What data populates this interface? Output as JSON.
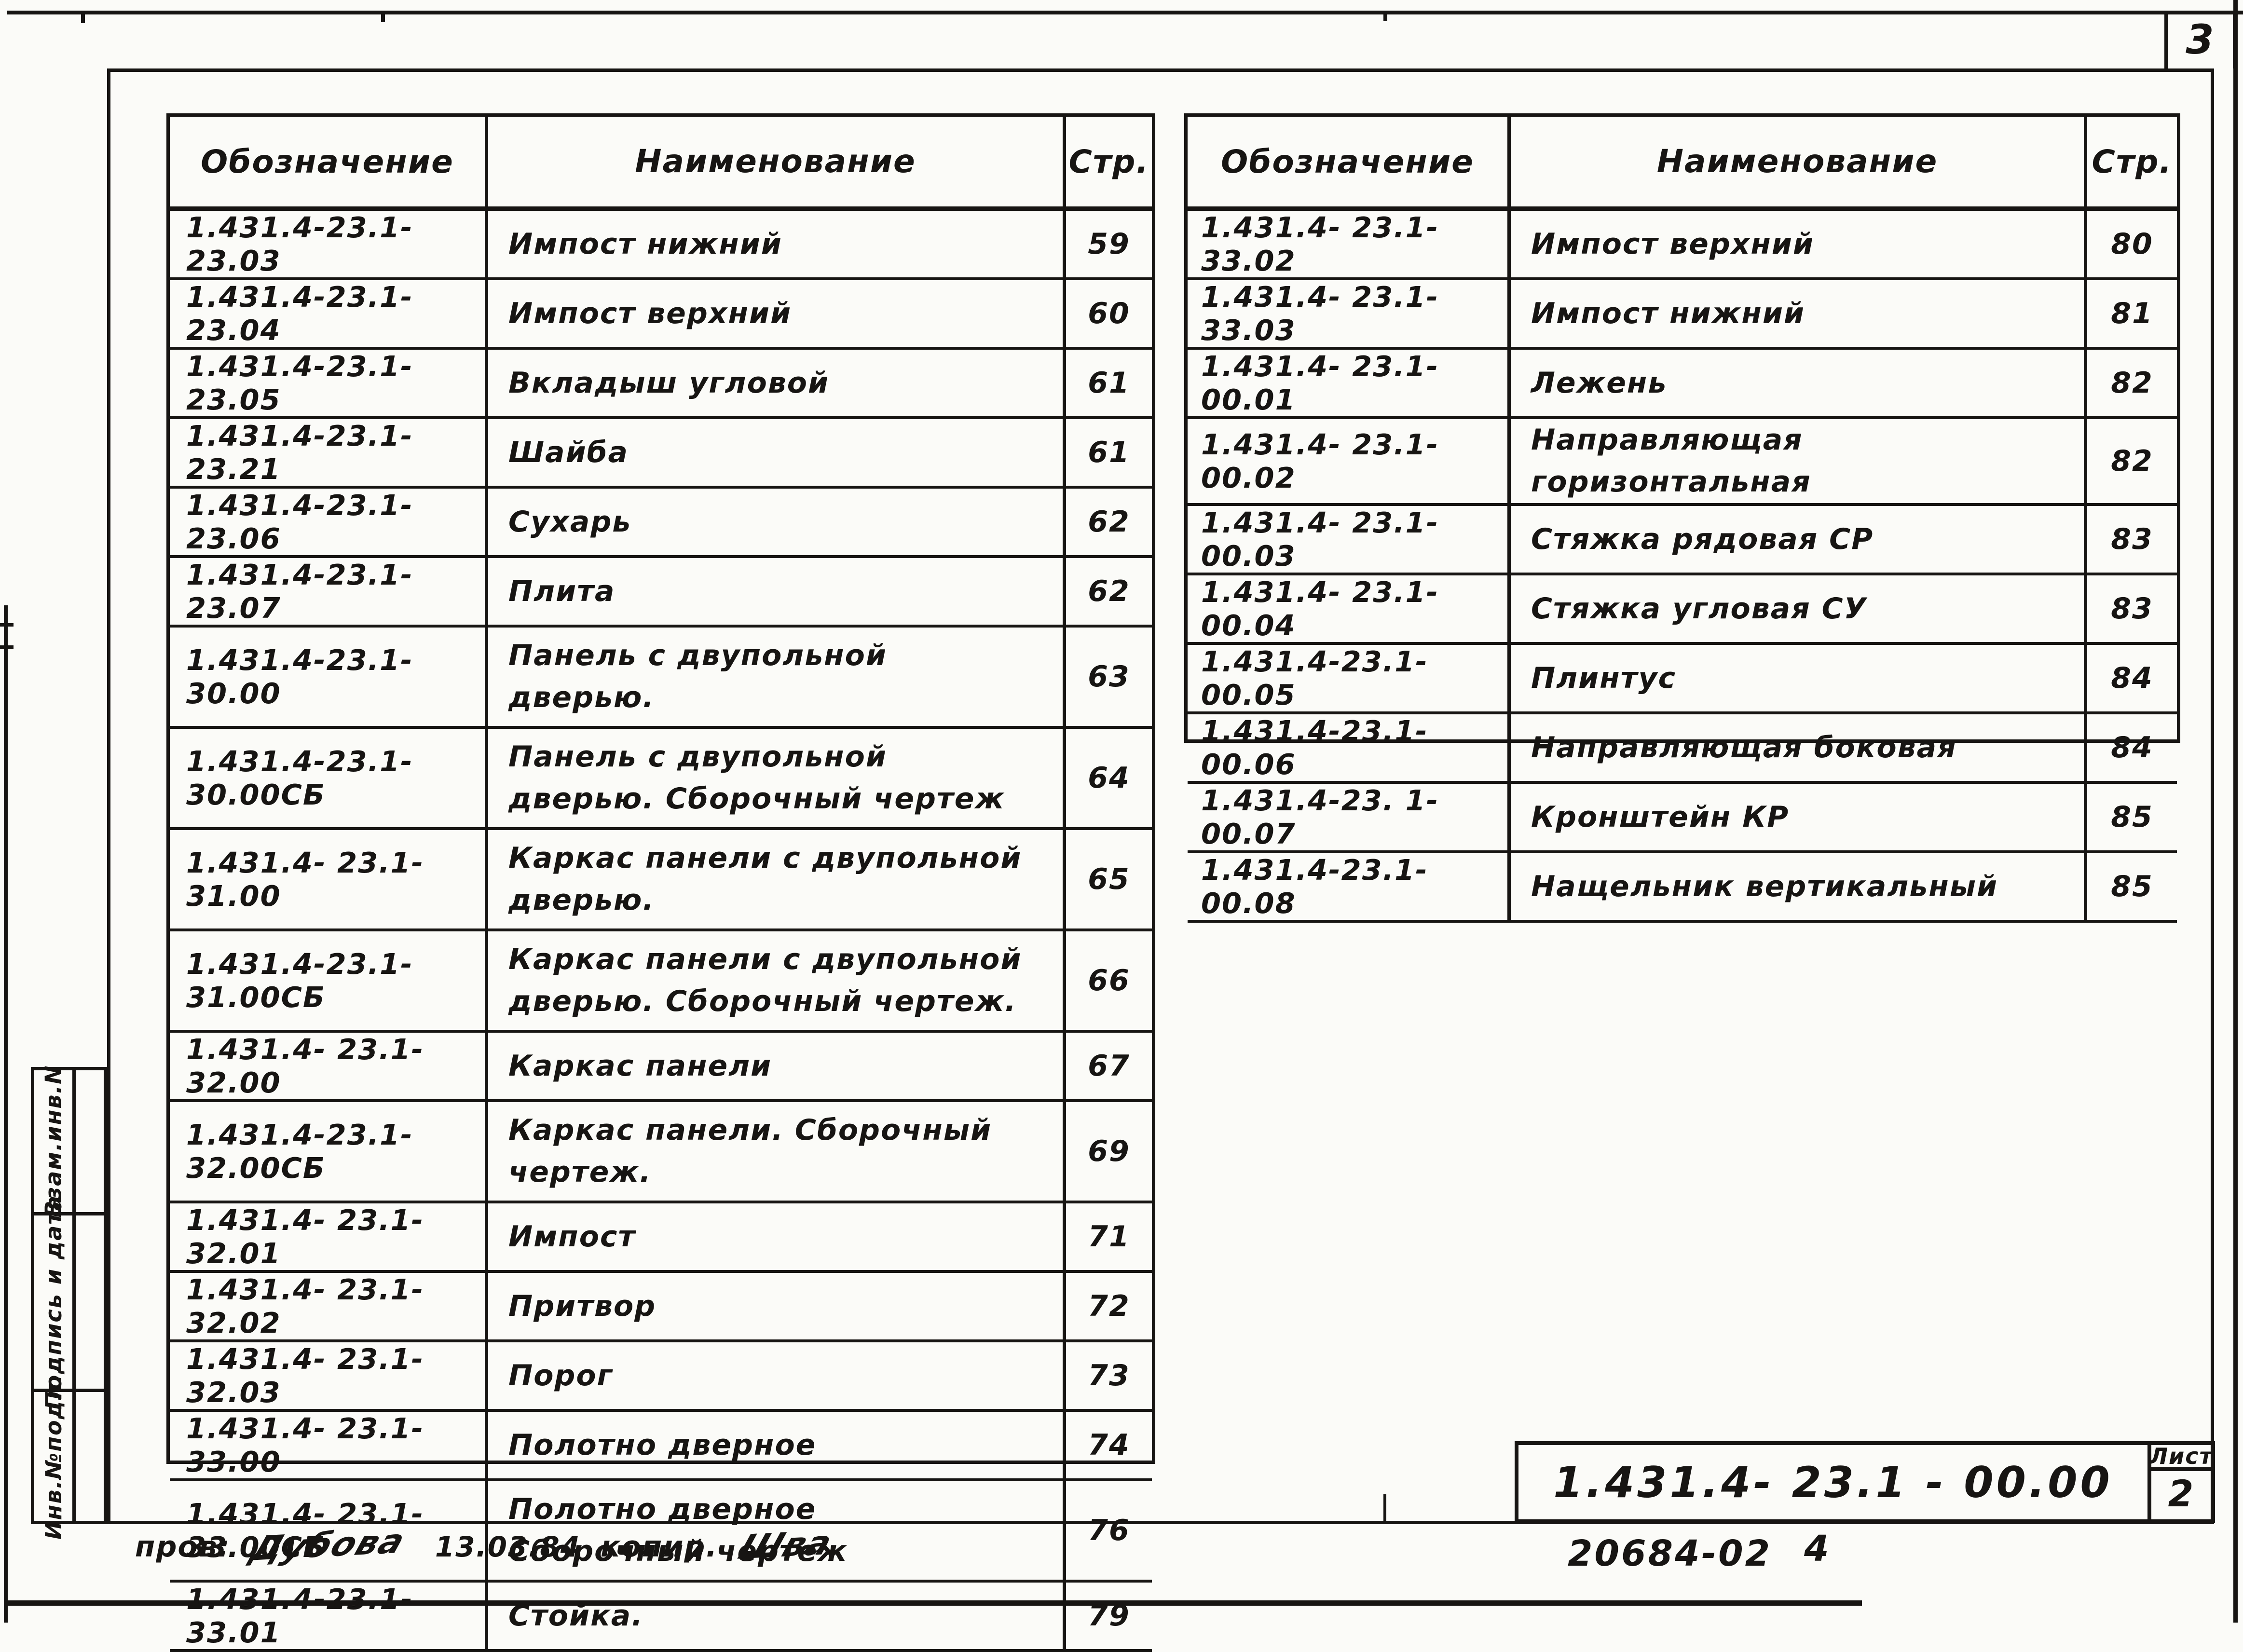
{
  "sheet": {
    "corner_page_number": "3",
    "stamp": {
      "doc_number": "1.431.4- 23.1 - 00.00",
      "sheet_label": "Лист",
      "sheet_value": "2"
    },
    "footer": {
      "code": "20684-02",
      "extra": "4",
      "note_prefix": "пров:",
      "note_sig1": "Дубова",
      "note_date": "13.03.84",
      "note_copier": "копир.",
      "note_sig2": "Шва"
    },
    "side_stamp": {
      "cells": [
        "Взам.инв.N",
        "Подпись и дата",
        "Инв.№подл."
      ]
    }
  },
  "tables": [
    {
      "headers": [
        "Обозначение",
        "Наименование",
        "Стр."
      ],
      "rows": [
        {
          "code": "1.431.4-23.1-23.03",
          "name": "Импост нижний",
          "page": "59",
          "tall": false
        },
        {
          "code": "1.431.4-23.1-23.04",
          "name": "Импост верхний",
          "page": "60",
          "tall": false
        },
        {
          "code": "1.431.4-23.1-23.05",
          "name": "Вкладыш угловой",
          "page": "61",
          "tall": false
        },
        {
          "code": "1.431.4-23.1- 23.21",
          "name": "Шайба",
          "page": "61",
          "tall": false
        },
        {
          "code": "1.431.4-23.1-23.06",
          "name": "Сухарь",
          "page": "62",
          "tall": false
        },
        {
          "code": "1.431.4-23.1-23.07",
          "name": "Плита",
          "page": "62",
          "tall": false
        },
        {
          "code": "1.431.4-23.1-30.00",
          "name": "Панель с двупольной\nдверью.",
          "page": "63",
          "tall": true
        },
        {
          "code": "1.431.4-23.1-30.00СБ",
          "name": "Панель с двупольной\nдверью. Сборочный чертеж",
          "page": "64",
          "tall": true
        },
        {
          "code": "1.431.4- 23.1-31.00",
          "name": "Каркас панели с двупольной\nдверью.",
          "page": "65",
          "tall": true
        },
        {
          "code": "1.431.4-23.1-31.00СБ",
          "name": "Каркас панели с двупольной\nдверью. Сборочный чертеж.",
          "page": "66",
          "tall": true
        },
        {
          "code": "1.431.4- 23.1-32.00",
          "name": "Каркас панели",
          "page": "67",
          "tall": false
        },
        {
          "code": "1.431.4-23.1-32.00СБ",
          "name": "Каркас панели. Сборочный\nчертеж.",
          "page": "69",
          "tall": true
        },
        {
          "code": "1.431.4- 23.1-32.01",
          "name": "Импост",
          "page": "71",
          "tall": false
        },
        {
          "code": "1.431.4- 23.1-32.02",
          "name": "Притвор",
          "page": "72",
          "tall": false
        },
        {
          "code": "1.431.4- 23.1-32.03",
          "name": "Порог",
          "page": "73",
          "tall": false
        },
        {
          "code": "1.431.4- 23.1-33.00",
          "name": "Полотно дверное",
          "page": "74",
          "tall": false
        },
        {
          "code": "1.431.4- 23.1-33.00СБ",
          "name": "Полотно дверное\nСборочный чертеж",
          "page": "76",
          "tall": true
        },
        {
          "code": "1.431.4-23.1-33.01",
          "name": "Стойка.",
          "page": "79",
          "tall": false
        }
      ]
    },
    {
      "headers": [
        "Обозначение",
        "Наименование",
        "Стр."
      ],
      "rows": [
        {
          "code": "1.431.4- 23.1- 33.02",
          "name": "Импост верхний",
          "page": "80",
          "tall": false
        },
        {
          "code": "1.431.4- 23.1- 33.03",
          "name": "Импост нижний",
          "page": "81",
          "tall": false
        },
        {
          "code": "1.431.4- 23.1-00.01",
          "name": "Лежень",
          "page": "82",
          "tall": false
        },
        {
          "code": "1.431.4- 23.1-00.02",
          "name": "Направляющая горизонтальная",
          "page": "82",
          "tall": false
        },
        {
          "code": "1.431.4- 23.1- 00.03",
          "name": "Стяжка рядовая СР",
          "page": "83",
          "tall": false
        },
        {
          "code": "1.431.4- 23.1- 00.04",
          "name": "Стяжка угловая СУ",
          "page": "83",
          "tall": false
        },
        {
          "code": "1.431.4-23.1- 00.05",
          "name": "Плинтус",
          "page": "84",
          "tall": false
        },
        {
          "code": "1.431.4-23.1-00.06",
          "name": "Направляющая боковая",
          "page": "84",
          "tall": false
        },
        {
          "code": "1.431.4-23. 1- 00.07",
          "name": "Кронштейн КР",
          "page": "85",
          "tall": false
        },
        {
          "code": "1.431.4-23.1- 00.08",
          "name": "Нащельник вертикальный",
          "page": "85",
          "tall": false
        }
      ]
    }
  ]
}
